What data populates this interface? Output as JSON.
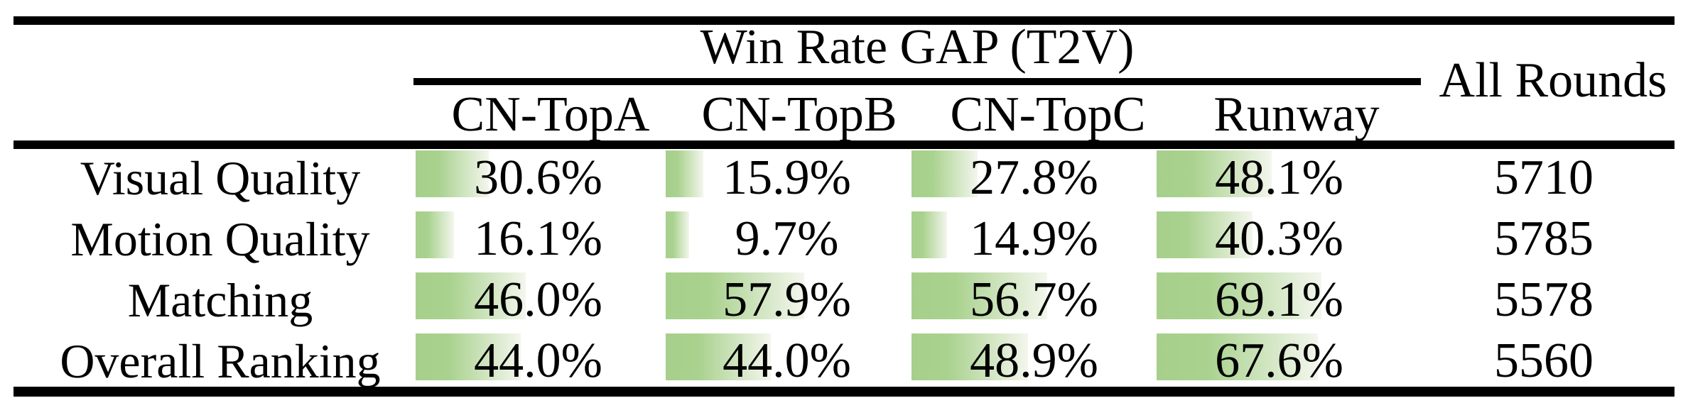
{
  "table": {
    "title": "Win Rate GAP (T2V)",
    "extra_column_header": "All Rounds",
    "columns": [
      "CN-TopA",
      "CN-TopB",
      "CN-TopC",
      "Runway"
    ],
    "rows": [
      {
        "label": "Visual Quality",
        "cells": [
          {
            "display": "30.6%",
            "value": 30.6
          },
          {
            "display": "15.9%",
            "value": 15.9
          },
          {
            "display": "27.8%",
            "value": 27.8
          },
          {
            "display": "48.1%",
            "value": 48.1
          }
        ],
        "all_rounds": "5710"
      },
      {
        "label": "Motion Quality",
        "cells": [
          {
            "display": "16.1%",
            "value": 16.1
          },
          {
            "display": "9.7%",
            "value": 9.7
          },
          {
            "display": "14.9%",
            "value": 14.9
          },
          {
            "display": "40.3%",
            "value": 40.3
          }
        ],
        "all_rounds": "5785"
      },
      {
        "label": "Matching",
        "cells": [
          {
            "display": "46.0%",
            "value": 46.0
          },
          {
            "display": "57.9%",
            "value": 57.9
          },
          {
            "display": "56.7%",
            "value": 56.7
          },
          {
            "display": "69.1%",
            "value": 69.1
          }
        ],
        "all_rounds": "5578"
      },
      {
        "label": "Overall Ranking",
        "cells": [
          {
            "display": "44.0%",
            "value": 44.0
          },
          {
            "display": "44.0%",
            "value": 44.0
          },
          {
            "display": "48.9%",
            "value": 48.9
          },
          {
            "display": "67.6%",
            "value": 67.6
          }
        ],
        "all_rounds": "5560"
      }
    ],
    "colors": {
      "bar_green": "#a7cf8c",
      "bar_fade": "#f3f6ed",
      "rule": "#000000",
      "background": "#ffffff",
      "text": "#000000"
    }
  },
  "chart_data": {
    "type": "table",
    "title": "Win Rate GAP (T2V)",
    "row_labels": [
      "Visual Quality",
      "Motion Quality",
      "Matching",
      "Overall Ranking"
    ],
    "series": [
      {
        "name": "CN-TopA",
        "values": [
          30.6,
          16.1,
          46.0,
          44.0
        ]
      },
      {
        "name": "CN-TopB",
        "values": [
          15.9,
          9.7,
          57.9,
          44.0
        ]
      },
      {
        "name": "CN-TopC",
        "values": [
          27.8,
          14.9,
          56.7,
          48.9
        ]
      },
      {
        "name": "Runway",
        "values": [
          48.1,
          40.3,
          69.1,
          67.6
        ]
      },
      {
        "name": "All Rounds",
        "values": [
          5710,
          5785,
          5578,
          5560
        ]
      }
    ],
    "value_unit_percent_columns": [
      "CN-TopA",
      "CN-TopB",
      "CN-TopC",
      "Runway"
    ],
    "bar_scale": "in-cell horizontal bars, 100% = full cell width"
  }
}
